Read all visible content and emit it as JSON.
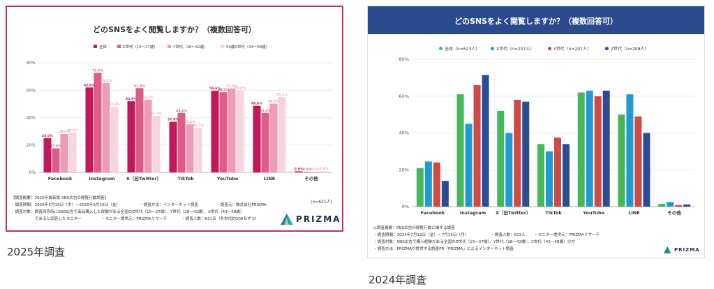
{
  "left": {
    "caption": "2025年調査",
    "n_total": "(n=621人)",
    "footnotes": {
      "outline": "【調査概要：2025年最新版 SNS広告の閲覧行動調査】",
      "period": "・調査期間：2025年5月15日（木）～2025年5月16日（金）",
      "method": "・調査方法：インターネット調査",
      "client": "・調査元：株式会社PRIZMA",
      "target": "・調査対象：調査回答時にSNS広告で商品購入した経験がある全国のZ世代（15～27歳）、Y世代（28～42歳）、X世代（43～58歳）",
      "target2": "であると回答したモニター",
      "provider": "・モニター提供元：PRIZMAリサーチ",
      "count": "・調査人数：621名（各世代約200名ずつ）"
    },
    "logo_text": "PRIZMA",
    "chart_data": {
      "type": "bar",
      "title": "どのSNSをよく閲覧しますか？（複数回答可）",
      "categories": [
        "Facebook",
        "Instagram",
        "X（旧Twitter）",
        "TikTok",
        "YouTube",
        "LINE",
        "その他"
      ],
      "series": [
        {
          "name": "全体",
          "color": "#c2185b",
          "values": [
            25.0,
            62.0,
            52.0,
            37.0,
            59.6,
            48.6,
            0.8
          ]
        },
        {
          "name": "Z世代（15～27歳）",
          "color": "#de5b8a",
          "values": [
            17.6,
            72.7,
            61.5,
            43.4,
            58.5,
            43.4,
            0.5
          ]
        },
        {
          "name": "Y世代（28～42歳）",
          "color": "#ed9bb8",
          "values": [
            28.0,
            65.3,
            53.1,
            35.1,
            61.3,
            50.2,
            0.5
          ]
        },
        {
          "name": "59歳X世代（43～58歳）",
          "color": "#f8d3e0",
          "values": [
            29.1,
            47.8,
            41.3,
            32.7,
            59.8,
            55.1,
            1.0
          ]
        }
      ],
      "data_labels": [
        [
          "25.0%",
          "62.0%",
          "52.0%",
          "37.0%",
          "59.6%",
          "48.6%",
          "0.8%"
        ],
        [
          "17.6%",
          "72.7%",
          "61.5%",
          "43.4%",
          "58.5%",
          "43.4%",
          "0.5%"
        ],
        [
          "28.0%",
          "65.3%",
          "53.1%",
          "35.1%",
          "61.3%",
          "50.2%",
          "0.5%"
        ],
        [
          "29.1%",
          "47.8%",
          "41.3%",
          "32.7%",
          "59.8%",
          "55.1%",
          "1.0%"
        ]
      ],
      "yticks": [
        "0%",
        "20%",
        "40%",
        "60%",
        "80%"
      ],
      "ylim": [
        0,
        80
      ],
      "grid": true,
      "legend": "top"
    }
  },
  "right": {
    "caption": "2024年調査",
    "footnotes": {
      "outline": "◎調査概要：SNS広告の閲覧行動に関する調査",
      "period": "・調査期間：2024年7月12日（金）～7月15日（月）",
      "count": "・調査人数：623人",
      "provider": "・モニター提供元：PRIZMAリサーチ",
      "target": "・調査対象：SNS広告で購入経験がある全国のZ世代（15～27歳）、Y世代（28～42歳）、X世代（43～58歳）の方",
      "method": "・調査方法：PRIZMAが提供する調査PR「PRIZMA」によるインターネット調査"
    },
    "logo_text": "PRIZMA",
    "chart_data": {
      "type": "bar",
      "title": "どのSNSをよく閲覧しますか？（複数回答可）",
      "categories": [
        "Facebook",
        "Instagram",
        "X（旧Twitter）",
        "TikTok",
        "YouTube",
        "LINE",
        "その他"
      ],
      "series": [
        {
          "name": "全体（n=623人）",
          "color": "#46b75a",
          "values": [
            21,
            61,
            52,
            34,
            62,
            50,
            1.5
          ]
        },
        {
          "name": "X世代（n=207人）",
          "color": "#1f9bd1",
          "values": [
            24.5,
            45,
            40,
            30,
            63,
            61,
            2.5
          ]
        },
        {
          "name": "Y世代（n=207人）",
          "color": "#cd4a45",
          "values": [
            24,
            66,
            58,
            37.5,
            60,
            49,
            0.8
          ]
        },
        {
          "name": "Z世代（n=209人）",
          "color": "#2c4d94",
          "values": [
            14,
            71.5,
            57,
            34,
            63,
            40,
            1.2
          ]
        }
      ],
      "yticks": [
        "0%",
        "20%",
        "40%",
        "60%",
        "80%"
      ],
      "ylim": [
        0,
        80
      ],
      "grid": true,
      "legend": "top"
    }
  }
}
